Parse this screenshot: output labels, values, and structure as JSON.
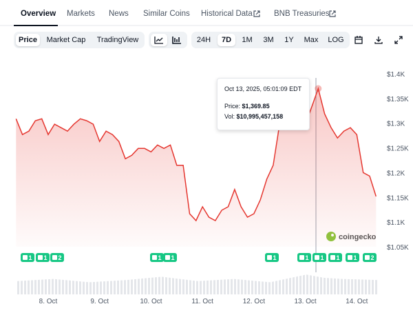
{
  "tabs": [
    "Overview",
    "Markets",
    "News",
    "Similar Coins",
    "Historical Data",
    "BNB Treasuries"
  ],
  "toolbar": {
    "views": [
      "Price",
      "Market Cap",
      "TradingView"
    ],
    "ranges": [
      "24H",
      "7D",
      "1M",
      "3M",
      "1Y",
      "Max",
      "LOG"
    ]
  },
  "chart_data": {
    "type": "line",
    "color": "#e5362f",
    "categories": [
      null,
      null,
      null,
      null,
      null,
      "8. Oct",
      null,
      null,
      null,
      null,
      null,
      null,
      null,
      "9. Oct",
      null,
      null,
      null,
      null,
      null,
      null,
      null,
      "10. Oct",
      null,
      null,
      null,
      null,
      null,
      null,
      null,
      "11. Oct",
      null,
      null,
      null,
      null,
      null,
      null,
      null,
      "12. Oct",
      null,
      null,
      null,
      null,
      null,
      null,
      null,
      "13. Oct",
      null,
      null,
      null,
      null,
      null,
      null,
      null,
      "14. Oct",
      null,
      null,
      null
    ],
    "values": [
      1309,
      1277,
      1284,
      1305,
      1309,
      1277,
      1298,
      1291,
      1284,
      1298,
      1309,
      1305,
      1298,
      1263,
      1284,
      1277,
      1263,
      1228,
      1235,
      1249,
      1249,
      1242,
      1256,
      1249,
      1256,
      1215,
      1215,
      1117,
      1103,
      1131,
      1110,
      1103,
      1124,
      1131,
      1166,
      1131,
      1110,
      1117,
      1145,
      1187,
      1215,
      1298,
      1305,
      1298,
      1291,
      1298,
      1333,
      1370,
      1319,
      1291,
      1270,
      1284,
      1291,
      1277,
      1200,
      1193,
      1152
    ],
    "ylim": [
      1050,
      1400
    ],
    "yticks": [
      {
        "value": 1050,
        "label": "$1.05K"
      },
      {
        "value": 1100,
        "label": "$1.1K"
      },
      {
        "value": 1150,
        "label": "$1.15K"
      },
      {
        "value": 1200,
        "label": "$1.2K"
      },
      {
        "value": 1250,
        "label": "$1.25K"
      },
      {
        "value": 1300,
        "label": "$1.3K"
      },
      {
        "value": 1350,
        "label": "$1.35K"
      },
      {
        "value": 1400,
        "label": "$1.4K"
      }
    ],
    "grid": false
  },
  "tooltip": {
    "date": "Oct 13, 2025, 05:01:09 EDT",
    "price_label": "Price:",
    "price": "$1,369.85",
    "volume_label": "Vol:",
    "volume": "$10,995,457,158"
  },
  "events": [
    "1",
    "1",
    "2",
    "1",
    "1",
    "1",
    "1",
    "1",
    "1",
    "1",
    "2"
  ],
  "watermark": "coingecko"
}
